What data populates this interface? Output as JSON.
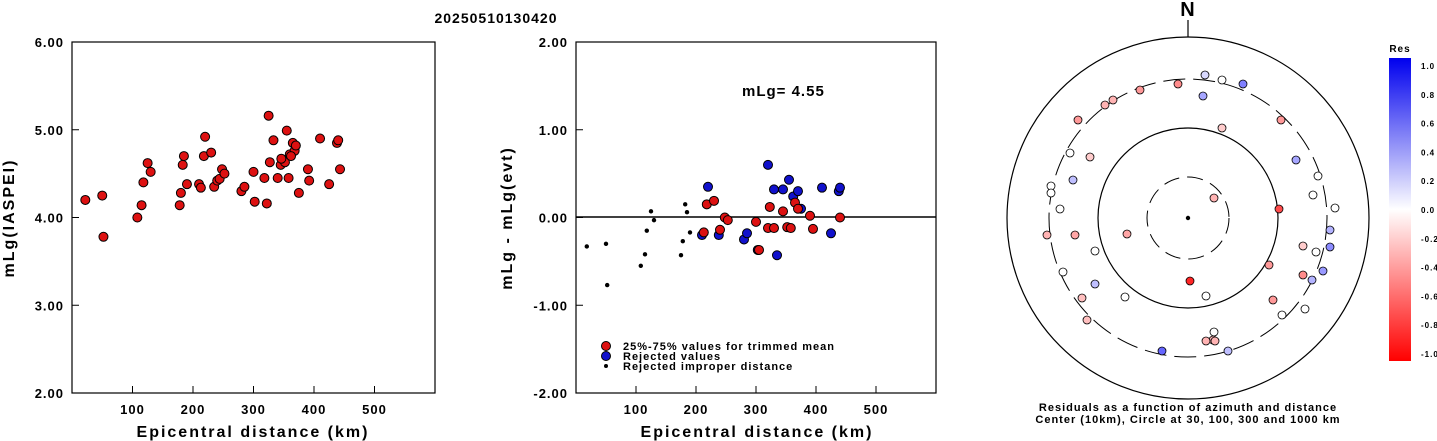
{
  "title": "20250510130420",
  "colors": {
    "red": "#dd1111",
    "blue": "#1111cc",
    "black": "#000000"
  },
  "chart_data": [
    {
      "type": "scatter",
      "id": "left",
      "xlabel": "Epicentral distance (km)",
      "ylabel": "mLg(IASPEI)",
      "xlim": [
        0,
        600
      ],
      "ylim": [
        2,
        6
      ],
      "xticks": [
        "100",
        "200",
        "300",
        "400",
        "500"
      ],
      "yticks": [
        "2.00",
        "3.00",
        "4.00",
        "5.00",
        "6.00"
      ],
      "points": [
        [
          22,
          4.2
        ],
        [
          50,
          4.25
        ],
        [
          52,
          3.78
        ],
        [
          108,
          4.0
        ],
        [
          115,
          4.14
        ],
        [
          118,
          4.4
        ],
        [
          125,
          4.62
        ],
        [
          130,
          4.52
        ],
        [
          178,
          4.14
        ],
        [
          180,
          4.28
        ],
        [
          183,
          4.6
        ],
        [
          185,
          4.7
        ],
        [
          190,
          4.38
        ],
        [
          210,
          4.38
        ],
        [
          213,
          4.34
        ],
        [
          218,
          4.7
        ],
        [
          220,
          4.92
        ],
        [
          230,
          4.74
        ],
        [
          235,
          4.35
        ],
        [
          240,
          4.42
        ],
        [
          244,
          4.44
        ],
        [
          248,
          4.55
        ],
        [
          252,
          4.5
        ],
        [
          280,
          4.3
        ],
        [
          285,
          4.35
        ],
        [
          300,
          4.52
        ],
        [
          302,
          4.18
        ],
        [
          318,
          4.45
        ],
        [
          322,
          4.16
        ],
        [
          325,
          5.16
        ],
        [
          327,
          4.63
        ],
        [
          333,
          4.88
        ],
        [
          340,
          4.45
        ],
        [
          345,
          4.6
        ],
        [
          352,
          4.63
        ],
        [
          355,
          4.99
        ],
        [
          358,
          4.45
        ],
        [
          360,
          4.72
        ],
        [
          365,
          4.85
        ],
        [
          368,
          4.76
        ],
        [
          370,
          4.82
        ],
        [
          375,
          4.28
        ],
        [
          390,
          4.55
        ],
        [
          392,
          4.42
        ],
        [
          410,
          4.9
        ],
        [
          425,
          4.38
        ],
        [
          438,
          4.85
        ],
        [
          440,
          4.88
        ],
        [
          443,
          4.55
        ],
        [
          346,
          4.67
        ],
        [
          362,
          4.7
        ]
      ]
    },
    {
      "type": "scatter",
      "id": "middle",
      "xlabel": "Epicentral distance (km)",
      "ylabel": "mLg - mLg(evt)",
      "xlim": [
        0,
        600
      ],
      "ylim": [
        -2,
        2
      ],
      "xticks": [
        "100",
        "200",
        "300",
        "400",
        "500"
      ],
      "yticks": [
        "-2.00",
        "-1.00",
        "0.00",
        "1.00",
        "2.00"
      ],
      "annotation": "mLg= 4.55",
      "legend": [
        "25%-75% values for trimmed mean",
        "Rejected values",
        "Rejected improper distance"
      ],
      "trimmed": [
        [
          213,
          -0.17
        ],
        [
          218,
          0.15
        ],
        [
          230,
          0.19
        ],
        [
          240,
          -0.14
        ],
        [
          248,
          0.0
        ],
        [
          253,
          -0.03
        ],
        [
          300,
          -0.05
        ],
        [
          305,
          -0.37
        ],
        [
          320,
          -0.12
        ],
        [
          323,
          0.12
        ],
        [
          330,
          -0.12
        ],
        [
          345,
          0.07
        ],
        [
          352,
          -0.11
        ],
        [
          358,
          -0.12
        ],
        [
          365,
          0.17
        ],
        [
          370,
          0.1
        ],
        [
          390,
          0.02
        ],
        [
          395,
          -0.13
        ],
        [
          440,
          0.0
        ]
      ],
      "rejected": [
        [
          210,
          -0.2
        ],
        [
          220,
          0.35
        ],
        [
          238,
          -0.2
        ],
        [
          280,
          -0.25
        ],
        [
          285,
          -0.18
        ],
        [
          303,
          -0.37
        ],
        [
          320,
          0.6
        ],
        [
          330,
          0.32
        ],
        [
          335,
          -0.43
        ],
        [
          345,
          0.32
        ],
        [
          355,
          0.43
        ],
        [
          362,
          0.24
        ],
        [
          370,
          0.3
        ],
        [
          375,
          0.1
        ],
        [
          410,
          0.34
        ],
        [
          425,
          -0.18
        ],
        [
          438,
          0.3
        ],
        [
          440,
          0.34
        ]
      ],
      "improper": [
        [
          18,
          -0.33
        ],
        [
          50,
          -0.3
        ],
        [
          52,
          -0.77
        ],
        [
          108,
          -0.55
        ],
        [
          115,
          -0.42
        ],
        [
          118,
          -0.15
        ],
        [
          125,
          0.07
        ],
        [
          130,
          -0.03
        ],
        [
          175,
          -0.43
        ],
        [
          178,
          -0.27
        ],
        [
          182,
          0.15
        ],
        [
          185,
          0.06
        ],
        [
          190,
          -0.17
        ]
      ]
    },
    {
      "type": "polar",
      "id": "right",
      "north_label": "N",
      "caption": [
        "Residuals as a function of azimuth and distance",
        "Center (10km), Circle at 30, 100, 300 and 1000 km"
      ],
      "colorbar": {
        "title": "Res",
        "labels": [
          "1.0",
          "0.8",
          "0.6",
          "0.4",
          "0.2",
          "0.0",
          "-0.2",
          "-0.4",
          "-0.6",
          "-0.8",
          "-1.0"
        ]
      },
      "stations": [
        [
          1205,
          75,
          0.15
        ],
        [
          1222,
          80,
          0.0
        ],
        [
          1243,
          84,
          0.5
        ],
        [
          1178,
          84,
          -0.45
        ],
        [
          1140,
          90,
          -0.4
        ],
        [
          1203,
          96,
          0.35
        ],
        [
          1113,
          100,
          -0.3
        ],
        [
          1105,
          105,
          -0.3
        ],
        [
          1078,
          120,
          -0.4
        ],
        [
          1281,
          120,
          -0.4
        ],
        [
          1222,
          128,
          -0.2
        ],
        [
          1070,
          153,
          0.0
        ],
        [
          1090,
          157,
          -0.2
        ],
        [
          1296,
          160,
          0.35
        ],
        [
          1073,
          180,
          0.25
        ],
        [
          1318,
          176,
          0.0
        ],
        [
          1051,
          186,
          0.0
        ],
        [
          1051,
          193,
          0.0
        ],
        [
          1313,
          195,
          0.0
        ],
        [
          1214,
          198,
          -0.3
        ],
        [
          1060,
          209,
          0.0
        ],
        [
          1279,
          209,
          -0.7
        ],
        [
          1335,
          208,
          0.0
        ],
        [
          1047,
          235,
          -0.3
        ],
        [
          1075,
          235,
          -0.35
        ],
        [
          1127,
          234,
          -0.35
        ],
        [
          1330,
          230,
          0.3
        ],
        [
          1095,
          251,
          0.0
        ],
        [
          1303,
          246,
          -0.2
        ],
        [
          1316,
          252,
          0.0
        ],
        [
          1330,
          247,
          0.45
        ],
        [
          1269,
          265,
          -0.4
        ],
        [
          1323,
          271,
          0.4
        ],
        [
          1063,
          272,
          0.0
        ],
        [
          1303,
          275,
          -0.45
        ],
        [
          1312,
          280,
          0.3
        ],
        [
          1095,
          284,
          0.25
        ],
        [
          1190,
          281,
          -0.85
        ],
        [
          1082,
          298,
          -0.25
        ],
        [
          1125,
          297,
          0.0
        ],
        [
          1273,
          300,
          -0.4
        ],
        [
          1305,
          309,
          0.0
        ],
        [
          1087,
          320,
          -0.25
        ],
        [
          1282,
          315,
          0.0
        ],
        [
          1214,
          332,
          0.0
        ],
        [
          1213,
          340,
          -0.3
        ],
        [
          1206,
          341,
          -0.3
        ],
        [
          1215,
          341,
          -0.3
        ],
        [
          1162,
          351,
          0.6
        ],
        [
          1228,
          351,
          0.25
        ],
        [
          1206,
          296,
          0.0
        ]
      ]
    }
  ]
}
